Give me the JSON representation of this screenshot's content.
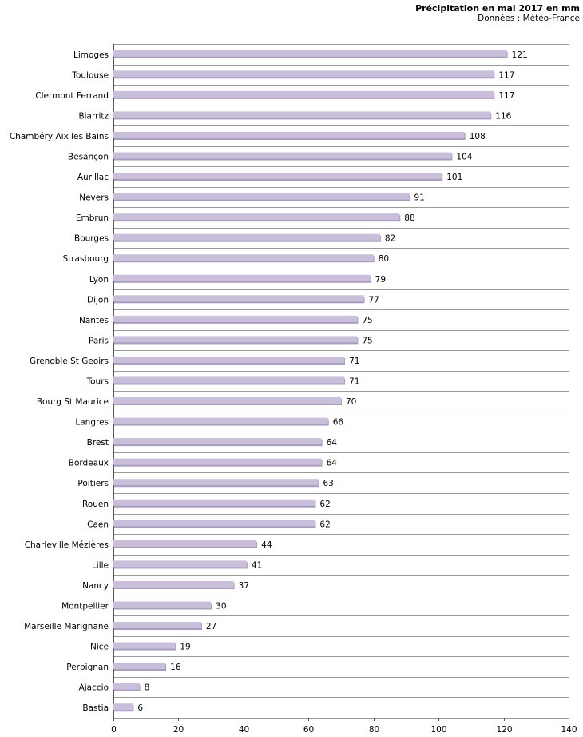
{
  "chart_data": {
    "type": "bar",
    "orientation": "horizontal",
    "title": "Précipitation en mai 2017 en mm",
    "subtitle": "Données : Météo-France",
    "xlabel": "",
    "ylabel": "",
    "xlim": [
      0,
      140
    ],
    "xticks": [
      0,
      20,
      40,
      60,
      80,
      100,
      120,
      140
    ],
    "grid": true,
    "legend": "none",
    "categories": [
      "Limoges",
      "Toulouse",
      "Clermont Ferrand",
      "Biarritz",
      "Chambéry Aix les Bains",
      "Besançon",
      "Aurillac",
      "Nevers",
      "Embrun",
      "Bourges",
      "Strasbourg",
      "Lyon",
      "Dijon",
      "Nantes",
      "Paris",
      "Grenoble St Geoirs",
      "Tours",
      "Bourg St Maurice",
      "Langres",
      "Brest",
      "Bordeaux",
      "Poitiers",
      "Rouen",
      "Caen",
      "Charleville Mézières",
      "Lille",
      "Nancy",
      "Montpellier",
      "Marseille Marignane",
      "Nice",
      "Perpignan",
      "Ajaccio",
      "Bastia"
    ],
    "values": [
      121,
      117,
      117,
      116,
      108,
      104,
      101,
      91,
      88,
      82,
      80,
      79,
      77,
      75,
      75,
      71,
      71,
      70,
      66,
      64,
      64,
      63,
      62,
      62,
      44,
      41,
      37,
      30,
      27,
      19,
      16,
      8,
      6
    ],
    "colors": {
      "bar": "#c9bfdb",
      "bar_shadow": "#a89dbf",
      "grid": "#9a9a9a"
    }
  }
}
